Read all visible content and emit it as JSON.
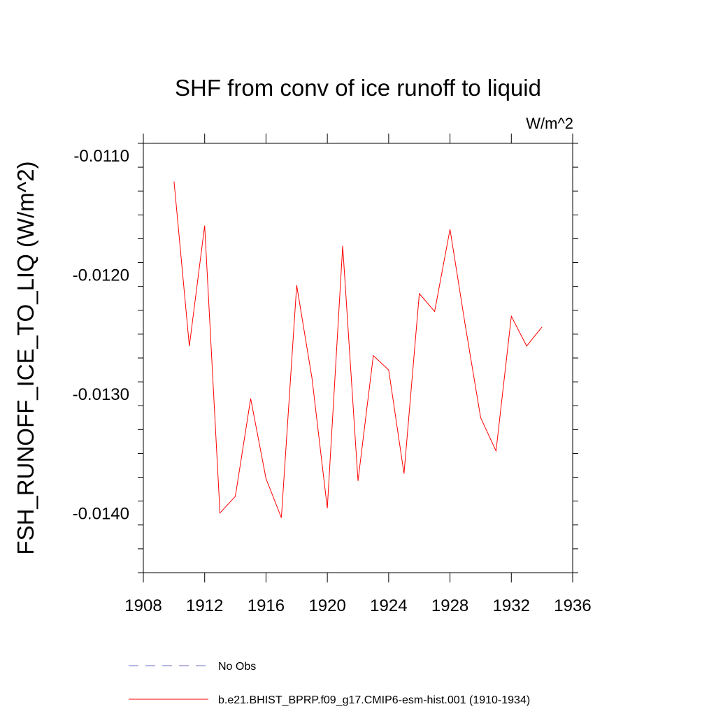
{
  "chart_data": {
    "type": "line",
    "title": "SHF from conv of ice runoff to liquid",
    "units": "W/m^2",
    "xlabel": "",
    "ylabel": "FSH_RUNOFF_ICE_TO_LIQ  (W/m^2)",
    "xlim": [
      1908,
      1936
    ],
    "ylim": [
      -0.0145,
      -0.0109
    ],
    "x_ticks": [
      1908,
      1912,
      1916,
      1920,
      1924,
      1928,
      1932,
      1936
    ],
    "x_tick_labels": [
      "1908",
      "1912",
      "1916",
      "1920",
      "1924",
      "1928",
      "1932",
      "1936"
    ],
    "y_ticks": [
      -0.011,
      -0.012,
      -0.013,
      -0.014
    ],
    "y_tick_labels": [
      "-0.0110",
      "-0.0120",
      "-0.0130",
      "-0.0140"
    ],
    "grid": false,
    "legend_position": "bottom",
    "series": [
      {
        "name": "b.e21.BHIST_BPRP.f09_g17.CMIP6-esm-hist.001 (1910-1934)",
        "color": "#ff0000",
        "style": "solid",
        "x": [
          1910,
          1911,
          1912,
          1913,
          1914,
          1915,
          1916,
          1917,
          1918,
          1919,
          1920,
          1921,
          1922,
          1923,
          1924,
          1925,
          1926,
          1927,
          1928,
          1929,
          1930,
          1931,
          1932,
          1933,
          1934
        ],
        "values": [
          -0.01122,
          -0.0126,
          -0.01159,
          -0.014,
          -0.01386,
          -0.01304,
          -0.01371,
          -0.01404,
          -0.01209,
          -0.01287,
          -0.01396,
          -0.01176,
          -0.01373,
          -0.01268,
          -0.0128,
          -0.01367,
          -0.01216,
          -0.01231,
          -0.01162,
          -0.01243,
          -0.0132,
          -0.01348,
          -0.01235,
          -0.0126,
          -0.01244
        ]
      }
    ],
    "legend": [
      {
        "label": "No Obs",
        "style": "dashed",
        "color": "#6e6ec8"
      },
      {
        "label": "b.e21.BHIST_BPRP.f09_g17.CMIP6-esm-hist.001 (1910-1934)",
        "style": "solid",
        "color": "#ff0000"
      }
    ]
  }
}
